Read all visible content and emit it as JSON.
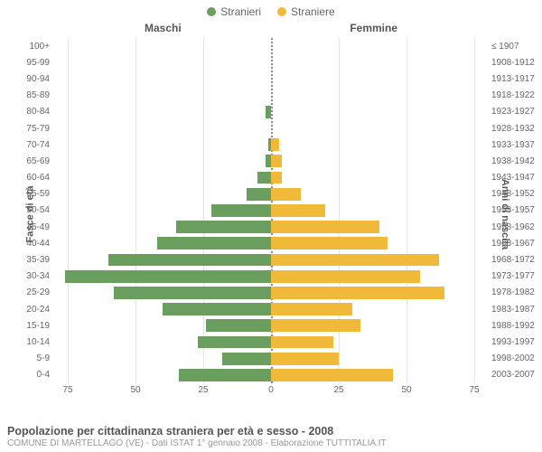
{
  "legend": {
    "male": {
      "label": "Stranieri",
      "color": "#6a9e5e"
    },
    "female": {
      "label": "Straniere",
      "color": "#f0b93a"
    }
  },
  "headers": {
    "male": "Maschi",
    "female": "Femmine"
  },
  "axis_titles": {
    "left": "Fasce di età",
    "right": "Anni di nascita"
  },
  "x_axis": {
    "max": 80,
    "ticks": [
      75,
      50,
      25,
      0,
      25,
      50,
      75
    ]
  },
  "grid_color": "#e5e5e5",
  "centerline_color": "#888888",
  "background_color": "#ffffff",
  "text_color": "#666666",
  "bar_gap_pct": 12,
  "rows": [
    {
      "age": "100+",
      "birth": "≤ 1907",
      "m": 0,
      "f": 0
    },
    {
      "age": "95-99",
      "birth": "1908-1912",
      "m": 0,
      "f": 0
    },
    {
      "age": "90-94",
      "birth": "1913-1917",
      "m": 0,
      "f": 0
    },
    {
      "age": "85-89",
      "birth": "1918-1922",
      "m": 0,
      "f": 0
    },
    {
      "age": "80-84",
      "birth": "1923-1927",
      "m": 2,
      "f": 0
    },
    {
      "age": "75-79",
      "birth": "1928-1932",
      "m": 0,
      "f": 0
    },
    {
      "age": "70-74",
      "birth": "1933-1937",
      "m": 1,
      "f": 3
    },
    {
      "age": "65-69",
      "birth": "1938-1942",
      "m": 2,
      "f": 4
    },
    {
      "age": "60-64",
      "birth": "1943-1947",
      "m": 5,
      "f": 4
    },
    {
      "age": "55-59",
      "birth": "1948-1952",
      "m": 9,
      "f": 11
    },
    {
      "age": "50-54",
      "birth": "1953-1957",
      "m": 22,
      "f": 20
    },
    {
      "age": "45-49",
      "birth": "1958-1962",
      "m": 35,
      "f": 40
    },
    {
      "age": "40-44",
      "birth": "1963-1967",
      "m": 42,
      "f": 43
    },
    {
      "age": "35-39",
      "birth": "1968-1972",
      "m": 60,
      "f": 62
    },
    {
      "age": "30-34",
      "birth": "1973-1977",
      "m": 76,
      "f": 55
    },
    {
      "age": "25-29",
      "birth": "1978-1982",
      "m": 58,
      "f": 64
    },
    {
      "age": "20-24",
      "birth": "1983-1987",
      "m": 40,
      "f": 30
    },
    {
      "age": "15-19",
      "birth": "1988-1992",
      "m": 24,
      "f": 33
    },
    {
      "age": "10-14",
      "birth": "1993-1997",
      "m": 27,
      "f": 23
    },
    {
      "age": "5-9",
      "birth": "1998-2002",
      "m": 18,
      "f": 25
    },
    {
      "age": "0-4",
      "birth": "2003-2007",
      "m": 34,
      "f": 45
    }
  ],
  "footer": {
    "title": "Popolazione per cittadinanza straniera per età e sesso - 2008",
    "subtitle": "COMUNE DI MARTELLAGO (VE) - Dati ISTAT 1° gennaio 2008 - Elaborazione TUTTITALIA.IT"
  }
}
